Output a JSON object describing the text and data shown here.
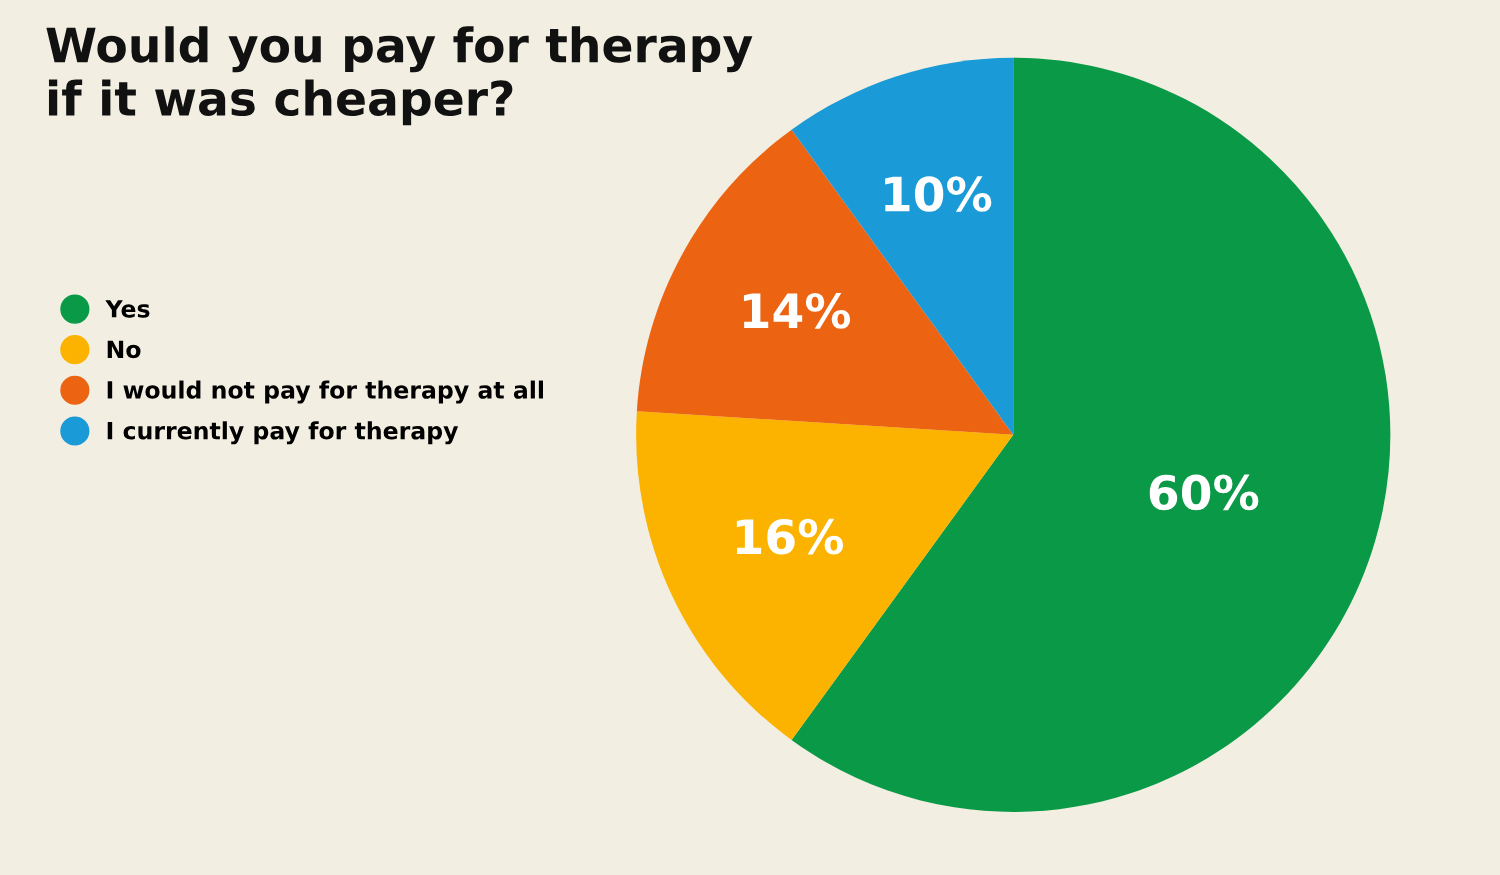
{
  "chart_data": {
    "type": "pie",
    "title": "Would you pay for therapy\nif it was cheaper?",
    "categories": [
      "Yes",
      "No",
      "I would not pay for therapy at all",
      "I currently pay for therapy"
    ],
    "values": [
      60,
      16,
      14,
      10
    ],
    "colors": [
      "#0a9a47",
      "#fbb300",
      "#ec6412",
      "#1a9ad6"
    ],
    "value_labels": [
      "60%",
      "16%",
      "14%",
      "10%"
    ],
    "legend": "left"
  }
}
